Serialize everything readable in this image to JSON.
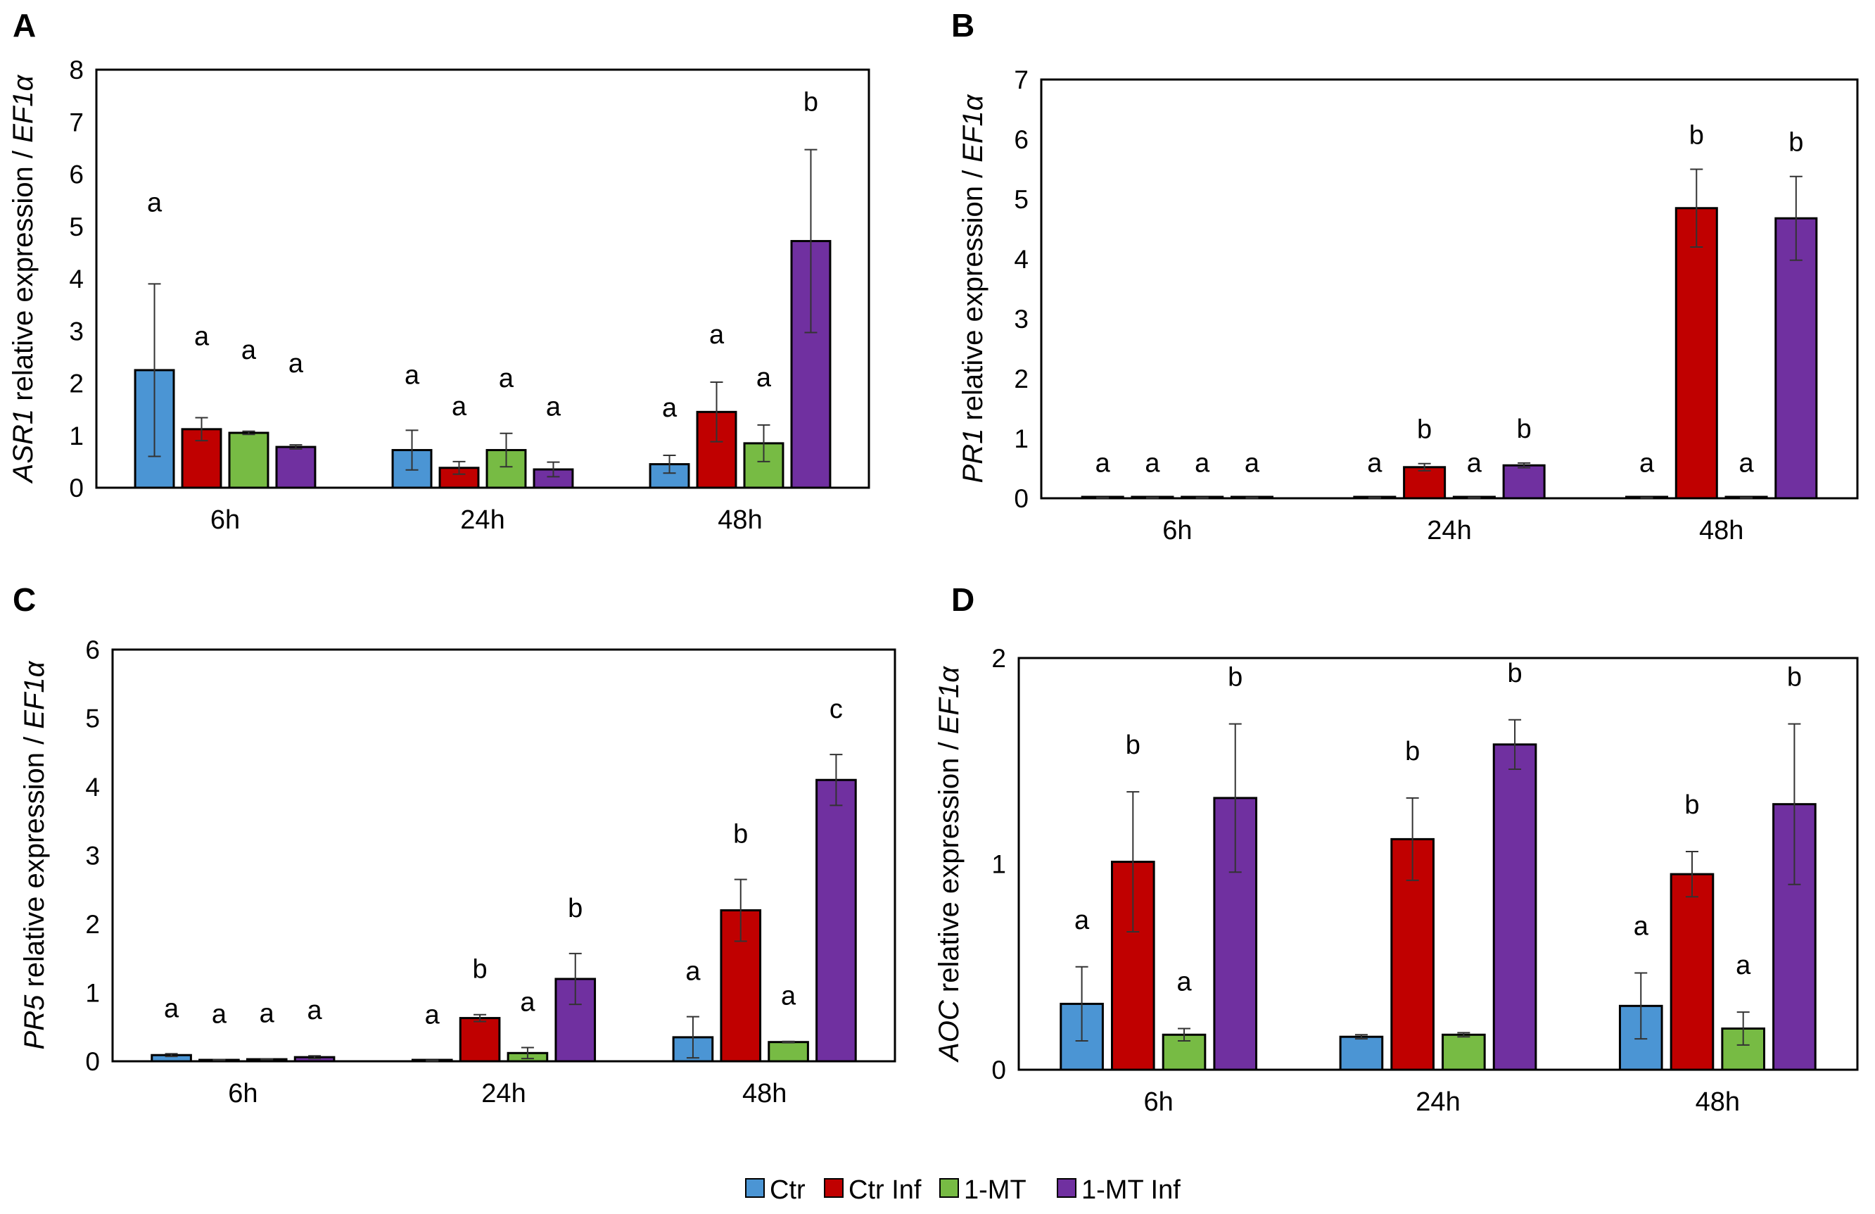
{
  "colors": {
    "Ctr": "#4b95d4",
    "Ctr Inf": "#c00000",
    "1-MT": "#77bb44",
    "1-MT Inf": "#7030a0"
  },
  "legend": {
    "entries": [
      "Ctr",
      "Ctr Inf",
      "1-MT",
      "1-MT Inf"
    ]
  },
  "chart_data": [
    {
      "panel": "A",
      "type": "bar",
      "ylabel_gene": "ASR1",
      "ylabel_middle": " relative expression / ",
      "ylabel_ref": "EF1α",
      "ylim": [
        0,
        8
      ],
      "yticks": [
        "0",
        "1",
        "2",
        "3",
        "4",
        "5",
        "6",
        "7",
        "8"
      ],
      "categories": [
        "6h",
        "24h",
        "48h"
      ],
      "series": [
        {
          "name": "Ctr",
          "values": [
            2.25,
            0.72,
            0.45
          ],
          "errors": [
            1.65,
            0.38,
            0.17
          ],
          "letters": [
            "a",
            "a",
            "a"
          ]
        },
        {
          "name": "Ctr Inf",
          "values": [
            1.12,
            0.38,
            1.45
          ],
          "errors": [
            0.22,
            0.12,
            0.57
          ],
          "letters": [
            "a",
            "a",
            "a"
          ]
        },
        {
          "name": "1-MT",
          "values": [
            1.05,
            0.72,
            0.85
          ],
          "errors": [
            0.03,
            0.32,
            0.35
          ],
          "letters": [
            "a",
            "a",
            "a"
          ]
        },
        {
          "name": "1-MT Inf",
          "values": [
            0.78,
            0.35,
            4.72
          ],
          "errors": [
            0.04,
            0.14,
            1.75
          ],
          "letters": [
            "a",
            "a",
            "b"
          ]
        }
      ]
    },
    {
      "panel": "B",
      "type": "bar",
      "ylabel_gene": "PR1",
      "ylabel_middle": " relative expression / ",
      "ylabel_ref": "EF1α",
      "ylim": [
        0,
        7
      ],
      "yticks": [
        "0",
        "1",
        "2",
        "3",
        "4",
        "5",
        "6",
        "7"
      ],
      "categories": [
        "6h",
        "24h",
        "48h"
      ],
      "series": [
        {
          "name": "Ctr",
          "values": [
            0.01,
            0.01,
            0.01
          ],
          "errors": [
            0.005,
            0.005,
            0.005
          ],
          "letters": [
            "a",
            "a",
            "a"
          ]
        },
        {
          "name": "Ctr Inf",
          "values": [
            0.01,
            0.52,
            4.85
          ],
          "errors": [
            0.005,
            0.06,
            0.65
          ],
          "letters": [
            "a",
            "b",
            "b"
          ]
        },
        {
          "name": "1-MT",
          "values": [
            0.01,
            0.01,
            0.01
          ],
          "errors": [
            0.005,
            0.005,
            0.005
          ],
          "letters": [
            "a",
            "a",
            "a"
          ]
        },
        {
          "name": "1-MT Inf",
          "values": [
            0.01,
            0.55,
            4.68
          ],
          "errors": [
            0.005,
            0.04,
            0.7
          ],
          "letters": [
            "a",
            "b",
            "b"
          ]
        }
      ]
    },
    {
      "panel": "C",
      "type": "bar",
      "ylabel_gene": "PR5",
      "ylabel_middle": " relative expression / ",
      "ylabel_ref": "EF1α",
      "ylim": [
        0,
        6
      ],
      "yticks": [
        "0",
        "1",
        "2",
        "3",
        "4",
        "5",
        "6"
      ],
      "categories": [
        "6h",
        "24h",
        "48h"
      ],
      "series": [
        {
          "name": "Ctr",
          "values": [
            0.09,
            0.01,
            0.35
          ],
          "errors": [
            0.02,
            0.005,
            0.3
          ],
          "letters": [
            "a",
            "a",
            "a"
          ]
        },
        {
          "name": "Ctr Inf",
          "values": [
            0.02,
            0.63,
            2.2
          ],
          "errors": [
            0.005,
            0.05,
            0.45
          ],
          "letters": [
            "a",
            "b",
            "b"
          ]
        },
        {
          "name": "1-MT",
          "values": [
            0.03,
            0.12,
            0.28
          ],
          "errors": [
            0.005,
            0.08,
            0.01
          ],
          "letters": [
            "a",
            "a",
            "a"
          ]
        },
        {
          "name": "1-MT Inf",
          "values": [
            0.06,
            1.2,
            4.1
          ],
          "errors": [
            0.02,
            0.37,
            0.37
          ],
          "letters": [
            "a",
            "b",
            "c"
          ]
        }
      ]
    },
    {
      "panel": "D",
      "type": "bar",
      "ylabel_gene": "AOC",
      "ylabel_middle": " relative expression / ",
      "ylabel_ref": "EF1α",
      "ylim": [
        0,
        2
      ],
      "yticks": [
        "0",
        "1",
        "2"
      ],
      "categories": [
        "6h",
        "24h",
        "48h"
      ],
      "series": [
        {
          "name": "Ctr",
          "values": [
            0.32,
            0.16,
            0.31
          ],
          "errors": [
            0.18,
            0.01,
            0.16
          ],
          "letters": [
            "a",
            "",
            "a"
          ]
        },
        {
          "name": "Ctr Inf",
          "values": [
            1.01,
            1.12,
            0.95
          ],
          "errors": [
            0.34,
            0.2,
            0.11
          ],
          "letters": [
            "b",
            "b",
            "b"
          ]
        },
        {
          "name": "1-MT",
          "values": [
            0.17,
            0.17,
            0.2
          ],
          "errors": [
            0.03,
            0.01,
            0.08
          ],
          "letters": [
            "a",
            "",
            "a"
          ]
        },
        {
          "name": "1-MT Inf",
          "values": [
            1.32,
            1.58,
            1.29
          ],
          "errors": [
            0.36,
            0.12,
            0.39
          ],
          "letters": [
            "b",
            "b",
            "b"
          ]
        }
      ]
    }
  ]
}
